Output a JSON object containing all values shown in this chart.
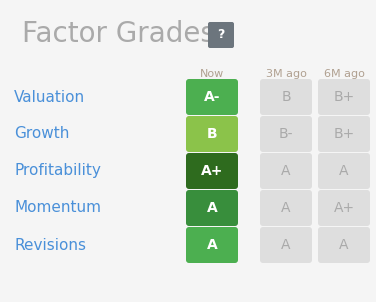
{
  "title": "Factor Grades",
  "bg_color": "#f5f5f5",
  "title_color": "#aaaaaa",
  "title_fontsize": 20,
  "question_mark_bg": "#6c757d",
  "header_labels": [
    "Now",
    "3M ago",
    "6M ago"
  ],
  "header_color": "#b0a090",
  "factors": [
    "Valuation",
    "Growth",
    "Profitability",
    "Momentum",
    "Revisions"
  ],
  "factor_color": "#4a90d9",
  "grades_now": [
    "A-",
    "B",
    "A+",
    "A",
    "A"
  ],
  "grades_3m": [
    "B",
    "B-",
    "A",
    "A",
    "A"
  ],
  "grades_6m": [
    "B+",
    "B+",
    "A",
    "A+",
    "A"
  ],
  "now_colors": [
    "#4caf50",
    "#8bc34a",
    "#2e6b1e",
    "#388e3c",
    "#4caf50"
  ],
  "old_bg_color": "#dedede",
  "old_text_color": "#aaaaaa",
  "now_text_color": "#ffffff"
}
